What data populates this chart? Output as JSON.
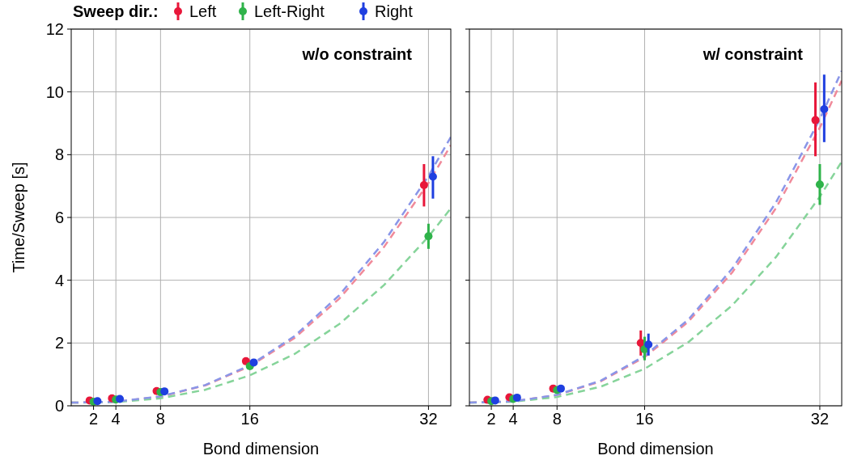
{
  "chart_data": [
    {
      "type": "scatter",
      "xlabel": "Bond dimension",
      "ylabel": "Time/Sweep [s]",
      "legend_title": "Sweep dir.:",
      "legend": "top",
      "grid": true,
      "marker": "circle",
      "xlim": [
        0,
        34
      ],
      "xticks": [
        2,
        4,
        8,
        16,
        32
      ],
      "ylim": [
        0,
        12
      ],
      "yticks": [
        0,
        2,
        4,
        6,
        8,
        10,
        12
      ],
      "annotations": [
        "w/o constraint"
      ],
      "series": [
        {
          "type": "line",
          "marker": "none",
          "line_style": "dashed",
          "color": "#f08a9a",
          "x": [
            0,
            4,
            8,
            12,
            16,
            20,
            24,
            28,
            32,
            34
          ],
          "values": [
            0.1,
            0.13,
            0.29,
            0.65,
            1.26,
            2.16,
            3.41,
            5.05,
            7.1,
            8.3
          ]
        },
        {
          "type": "line",
          "marker": "none",
          "line_style": "dashed",
          "color": "#86d49a",
          "x": [
            0,
            4,
            8,
            12,
            16,
            20,
            24,
            28,
            32,
            34
          ],
          "values": [
            0.1,
            0.12,
            0.24,
            0.51,
            0.97,
            1.65,
            2.6,
            3.84,
            5.39,
            6.29
          ]
        },
        {
          "type": "line",
          "marker": "none",
          "line_style": "dashed",
          "color": "#8a96e8",
          "x": [
            0,
            4,
            8,
            12,
            16,
            20,
            24,
            28,
            32,
            34
          ],
          "values": [
            0.1,
            0.13,
            0.3,
            0.66,
            1.29,
            2.22,
            3.52,
            5.21,
            7.32,
            8.56
          ]
        },
        {
          "name": "Left",
          "color": "#e8173a",
          "x": [
            1.65,
            3.65,
            7.65,
            15.65,
            31.6
          ],
          "values": [
            0.17,
            0.24,
            0.47,
            1.42,
            7.03
          ],
          "errors": [
            null,
            null,
            null,
            null,
            [
              6.35,
              7.7
            ]
          ]
        },
        {
          "name": "Left-Right",
          "color": "#2fb34a",
          "x": [
            2,
            4,
            8,
            16,
            32
          ],
          "values": [
            0.13,
            0.2,
            0.44,
            1.26,
            5.4
          ],
          "errors": [
            null,
            null,
            null,
            null,
            [
              5.0,
              5.8
            ]
          ]
        },
        {
          "name": "Right",
          "color": "#1f3fe0",
          "x": [
            2.35,
            4.35,
            8.35,
            16.35,
            32.4
          ],
          "values": [
            0.15,
            0.22,
            0.46,
            1.38,
            7.3
          ],
          "errors": [
            null,
            null,
            null,
            null,
            [
              6.6,
              7.95
            ]
          ]
        }
      ]
    },
    {
      "type": "scatter",
      "xlabel": "Bond dimension",
      "grid": true,
      "marker": "circle",
      "tick_labels": "x",
      "xlim": [
        0,
        34
      ],
      "xticks": [
        2,
        4,
        8,
        16,
        32
      ],
      "ylim": [
        0,
        12
      ],
      "yticks": [
        0,
        2,
        4,
        6,
        8,
        10,
        12
      ],
      "annotations": [
        "w/ constraint"
      ],
      "series": [
        {
          "type": "line",
          "marker": "none",
          "line_style": "dashed",
          "color": "#f08a9a",
          "x": [
            0,
            4,
            8,
            12,
            16,
            20,
            24,
            28,
            32,
            34
          ],
          "values": [
            0.1,
            0.14,
            0.34,
            0.78,
            1.55,
            2.68,
            4.25,
            6.3,
            8.86,
            10.36
          ]
        },
        {
          "type": "line",
          "marker": "none",
          "line_style": "dashed",
          "color": "#86d49a",
          "x": [
            0,
            4,
            8,
            12,
            16,
            20,
            24,
            28,
            32,
            34
          ],
          "values": [
            0.1,
            0.13,
            0.28,
            0.61,
            1.18,
            2.03,
            3.2,
            4.74,
            6.66,
            7.78
          ]
        },
        {
          "type": "line",
          "marker": "none",
          "line_style": "dashed",
          "color": "#8a96e8",
          "x": [
            0,
            4,
            8,
            12,
            16,
            20,
            24,
            28,
            32,
            34
          ],
          "values": [
            0.1,
            0.14,
            0.35,
            0.8,
            1.59,
            2.75,
            4.37,
            6.48,
            9.13,
            10.67
          ]
        },
        {
          "color": "#e8173a",
          "x": [
            1.65,
            3.65,
            7.65,
            15.65,
            31.6
          ],
          "values": [
            0.19,
            0.27,
            0.55,
            2.0,
            9.1
          ],
          "errors": [
            null,
            null,
            null,
            [
              1.6,
              2.4
            ],
            [
              7.95,
              10.3
            ]
          ]
        },
        {
          "color": "#2fb34a",
          "x": [
            2,
            4,
            8,
            16,
            32
          ],
          "values": [
            0.15,
            0.22,
            0.5,
            1.8,
            7.05
          ],
          "errors": [
            null,
            null,
            null,
            [
              1.45,
              2.2
            ],
            [
              6.4,
              7.7
            ]
          ]
        },
        {
          "color": "#1f3fe0",
          "x": [
            2.35,
            4.35,
            8.35,
            16.35,
            32.4
          ],
          "values": [
            0.17,
            0.26,
            0.55,
            1.95,
            9.45
          ],
          "errors": [
            null,
            null,
            null,
            [
              1.6,
              2.3
            ],
            [
              8.4,
              10.55
            ]
          ]
        }
      ]
    }
  ]
}
